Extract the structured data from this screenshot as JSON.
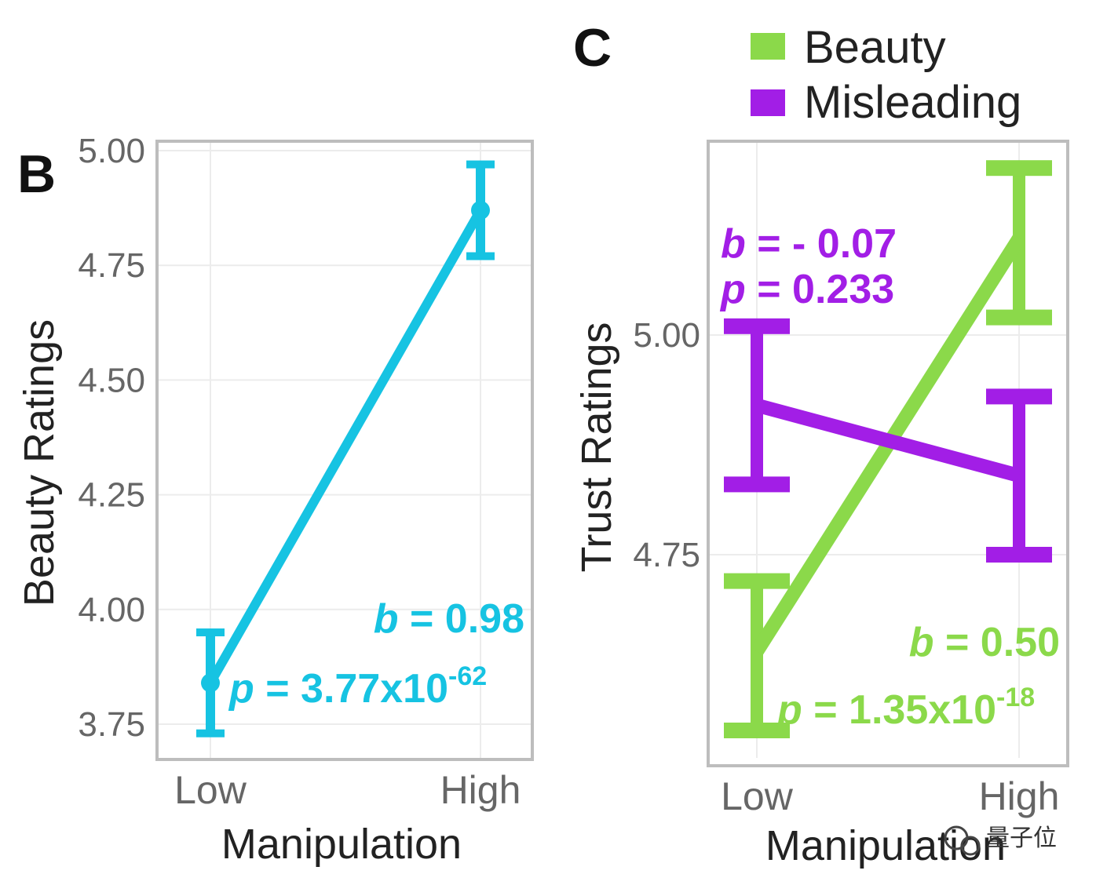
{
  "colors": {
    "cyan": "#16c3e2",
    "green": "#8bd94a",
    "purple": "#a21ee6",
    "grid": "#ececec",
    "frame": "#bdbdbd"
  },
  "watermark": "量子位",
  "chart_data": [
    {
      "type": "line",
      "panel_label": "B",
      "xlabel": "Manipulation",
      "ylabel": "Beauty Ratings",
      "categories": [
        "Low",
        "High"
      ],
      "ylim": [
        3.75,
        5.0
      ],
      "yticks": [
        "3.75",
        "4.00",
        "4.25",
        "4.50",
        "4.75",
        "5.00"
      ],
      "grid": true,
      "series": [
        {
          "color": "#16c3e2",
          "values": [
            3.84,
            4.87
          ],
          "error_low": [
            3.73,
            4.77
          ],
          "error_high": [
            3.95,
            4.97
          ]
        }
      ],
      "annotation": {
        "b_prefix": "b",
        "b_value": " = 0.98",
        "p_prefix": "p",
        "p_value": " = 3.77x10",
        "p_exp": "-62"
      }
    },
    {
      "type": "line",
      "panel_label": "C",
      "xlabel": "Manipulation",
      "ylabel": "Trust Ratings",
      "categories": [
        "Low",
        "High"
      ],
      "ylim": [
        4.61,
        5.23
      ],
      "yticks": [
        "4.75",
        "5.00"
      ],
      "grid": true,
      "legend_position": "top-right",
      "series": [
        {
          "name": "Beauty",
          "color": "#8bd94a",
          "values": [
            4.64,
            5.11
          ],
          "error_low": [
            4.55,
            5.02
          ],
          "error_high": [
            4.72,
            5.19
          ]
        },
        {
          "name": "Misleading",
          "color": "#a21ee6",
          "values": [
            4.92,
            4.84
          ],
          "error_low": [
            4.83,
            4.75
          ],
          "error_high": [
            5.01,
            4.93
          ]
        }
      ],
      "annotations": [
        {
          "b_prefix": "b",
          "b_value": " = - 0.07",
          "p_prefix": "p",
          "p_value": " = 0.233"
        },
        {
          "b_prefix": "b",
          "b_value": " = 0.50",
          "p_prefix": "p",
          "p_value": " = 1.35x10",
          "p_exp": "-18"
        }
      ]
    }
  ]
}
